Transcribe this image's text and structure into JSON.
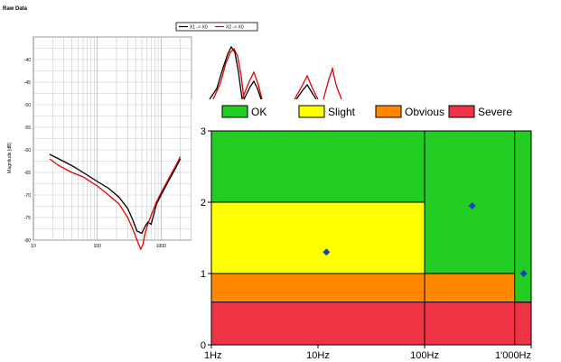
{
  "chart_data": [
    {
      "type": "line",
      "title": "Raw Data",
      "ylabel": "Magnitude [dB]",
      "xscale": "log",
      "xlim": [
        10,
        3000
      ],
      "ylim": [
        -80,
        -35
      ],
      "x_tick_labels": [
        "10",
        "100",
        "1000"
      ],
      "y_tick_labels": [
        "-40",
        "-45",
        "-50",
        "-55",
        "-60",
        "-65",
        "-70",
        "-75",
        "-80"
      ],
      "grid": true,
      "legend_placement": "top-center",
      "series": [
        {
          "name": "X1 -> X0",
          "color": "#000000",
          "x": [
            18,
            25,
            40,
            60,
            100,
            150,
            220,
            300,
            360,
            420,
            500,
            560,
            620,
            700,
            850,
            1000,
            1300,
            1700,
            2000
          ],
          "y": [
            -61,
            -62,
            -63.5,
            -65,
            -67,
            -68.5,
            -70.5,
            -73,
            -75.5,
            -78,
            -78.5,
            -77,
            -76,
            -76.5,
            -72,
            -70,
            -67,
            -64,
            -62
          ]
        },
        {
          "name": "X2 -> X0",
          "color": "#e00000",
          "x": [
            18,
            25,
            40,
            60,
            100,
            150,
            220,
            300,
            360,
            420,
            480,
            520,
            560,
            620,
            700,
            850,
            1000,
            1300,
            1700,
            2000
          ],
          "y": [
            -62,
            -63.5,
            -65,
            -66,
            -68,
            -70,
            -72,
            -75,
            -77.5,
            -80,
            -82,
            -81,
            -78.5,
            -76.5,
            -74.5,
            -71.5,
            -69.5,
            -66.5,
            -63.5,
            -61.5
          ]
        }
      ]
    },
    {
      "type": "scatter",
      "xscale": "log",
      "xlim": [
        1,
        1000
      ],
      "ylim": [
        0,
        3
      ],
      "x_tick_labels": [
        "1Hz",
        "10Hz",
        "100Hz",
        "1'000Hz"
      ],
      "y_tick_labels": [
        "0",
        "1",
        "2",
        "3"
      ],
      "legend_placement": "top",
      "zones": [
        {
          "label": "OK",
          "color": "#22cc22"
        },
        {
          "label": "Slight",
          "color": "#ffff00"
        },
        {
          "label": "Obvious",
          "color": "#ff8800"
        },
        {
          "label": "Severe",
          "color": "#ee3344"
        }
      ],
      "thresholds": {
        "below_100Hz": [
          0.6,
          1.0,
          2.0
        ],
        "100_to_700Hz": [
          0.6,
          1.0,
          1.0
        ],
        "above_700Hz": [
          0.6,
          0.6,
          0.6
        ]
      },
      "x_boundaries": [
        100,
        700
      ],
      "points": [
        {
          "x": 12,
          "y": 1.3
        },
        {
          "x": 280,
          "y": 1.95
        },
        {
          "x": 850,
          "y": 1.0
        }
      ],
      "marker_color": "#1f3fbf"
    }
  ]
}
